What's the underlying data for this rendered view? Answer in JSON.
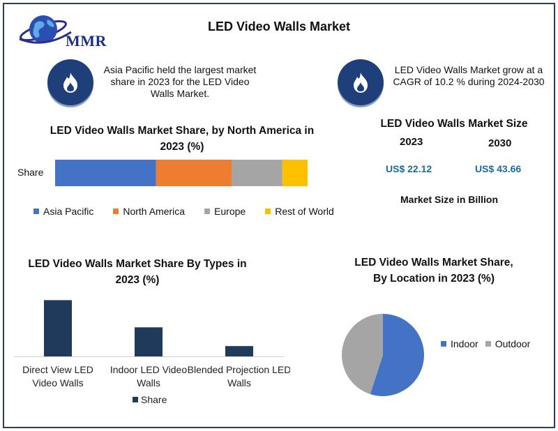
{
  "header": {
    "logo_text": "MMR",
    "title": "LED Video Walls Market"
  },
  "highlights": [
    {
      "icon": "flame-icon",
      "text": "Asia Pacific held the largest market share in 2023 for the LED Video Walls Market."
    },
    {
      "icon": "flame-icon",
      "text": "LED Video Walls Market grow at a CAGR of 10.2 % during 2024-2030"
    }
  ],
  "market_size": {
    "title": "LED Video Walls Market Size",
    "years": [
      "2023",
      "2030"
    ],
    "values": [
      "US$ 22.12",
      "US$ 43.66"
    ],
    "caption": "Market Size in Billion"
  },
  "colors": {
    "asia_pacific": "#4472c4",
    "north_america": "#ed7d31",
    "europe": "#a5a5a5",
    "rest_of_world": "#ffc000",
    "types_bar": "#1f3a5a",
    "indoor": "#4472c4",
    "outdoor": "#a5a5a5",
    "value_text": "#1a6aa0"
  },
  "chart_data": [
    {
      "type": "bar",
      "orientation": "horizontal-stacked",
      "title": "LED Video Walls Market Share, by North America in 2023 (%)",
      "categories": [
        "Share"
      ],
      "series": [
        {
          "name": "Asia Pacific",
          "values": [
            40
          ]
        },
        {
          "name": "North America",
          "values": [
            30
          ]
        },
        {
          "name": "Europe",
          "values": [
            20
          ]
        },
        {
          "name": "Rest of World",
          "values": [
            10
          ]
        }
      ],
      "legend": "bottom"
    },
    {
      "type": "bar",
      "title": "LED Video Walls Market Share By Types in 2023 (%)",
      "categories": [
        "Direct View LED Video Walls",
        "Indoor LED Video Walls",
        "Blended Projection LED Walls"
      ],
      "series": [
        {
          "name": "Share",
          "values": [
            60,
            31,
            11
          ]
        }
      ],
      "ylim": [
        0,
        64
      ],
      "legend": "bottom"
    },
    {
      "type": "pie",
      "title": "LED Video Walls Market Share, By Location in 2023 (%)",
      "categories": [
        "Indoor",
        "Outdoor"
      ],
      "values": [
        55,
        45
      ],
      "legend": "right"
    }
  ]
}
